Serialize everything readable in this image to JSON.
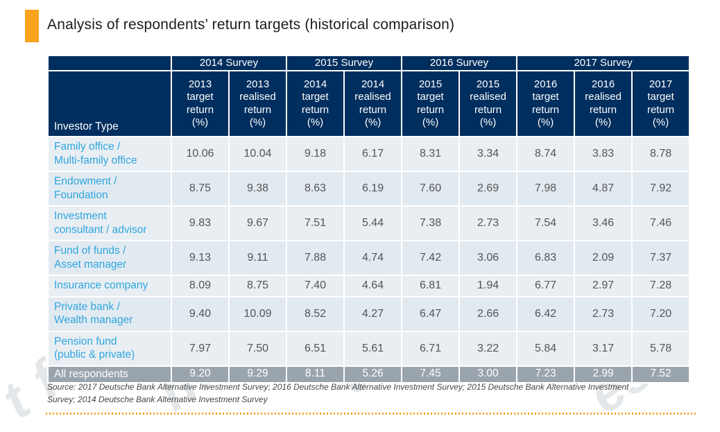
{
  "page": {
    "title": "Analysis of respondents’ return targets (historical comparison)",
    "accent_color": "#F8A21D",
    "header_bg": "#002E5E",
    "label_color": "#2EA6DE",
    "summary_bg": "#9AA4AD"
  },
  "source_note": "Source: 2017 Deutsche Bank Alternative Investment Survey; 2016 Deutsche Bank Alternative Investment Survey; 2015 Deutsche Bank Alternative Investment Survey; 2014 Deutsche Bank Alternative Investment Survey",
  "watermark": {
    "fragments": [
      "t for",
      "nfide",
      "use",
      "ess"
    ]
  },
  "chart_data": {
    "type": "table",
    "title": "Analysis of respondents’ return targets (historical comparison)",
    "row_header": "Investor Type",
    "survey_groups": [
      {
        "label": "2014 Survey",
        "colspan": 2
      },
      {
        "label": "2015 Survey",
        "colspan": 2
      },
      {
        "label": "2016 Survey",
        "colspan": 2
      },
      {
        "label": "2017 Survey",
        "colspan": 3
      }
    ],
    "columns": [
      "2013\ntarget\nreturn\n(%)",
      "2013\nrealised\nreturn\n(%)",
      "2014\ntarget\nreturn\n(%)",
      "2014\nrealised\nreturn\n(%)",
      "2015\ntarget\nreturn\n(%)",
      "2015\nrealised\nreturn\n(%)",
      "2016\ntarget\nreturn\n(%)",
      "2016\nrealised\nreturn\n(%)",
      "2017\ntarget\nreturn\n(%)"
    ],
    "rows": [
      {
        "label": "Family office /\nMulti-family office",
        "values": [
          "10.06",
          "10.04",
          "9.18",
          "6.17",
          "8.31",
          "3.34",
          "8.74",
          "3.83",
          "8.78"
        ]
      },
      {
        "label": "Endowment /\nFoundation",
        "values": [
          "8.75",
          "9.38",
          "8.63",
          "6.19",
          "7.60",
          "2.69",
          "7.98",
          "4.87",
          "7.92"
        ]
      },
      {
        "label": "Investment\nconsultant / advisor",
        "values": [
          "9.83",
          "9.67",
          "7.51",
          "5.44",
          "7.38",
          "2.73",
          "7.54",
          "3.46",
          "7.46"
        ]
      },
      {
        "label": "Fund of funds /\nAsset manager",
        "values": [
          "9.13",
          "9.11",
          "7.88",
          "4.74",
          "7.42",
          "3.06",
          "6.83",
          "2.09",
          "7.37"
        ]
      },
      {
        "label": "Insurance company",
        "values": [
          "8.09",
          "8.75",
          "7.40",
          "4.64",
          "6.81",
          "1.94",
          "6.77",
          "2.97",
          "7.28"
        ]
      },
      {
        "label": "Private bank /\nWealth manager",
        "values": [
          "9.40",
          "10.09",
          "8.52",
          "4.27",
          "6.47",
          "2.66",
          "6.42",
          "2.73",
          "7.20"
        ]
      },
      {
        "label": "Pension fund\n(public & private)",
        "values": [
          "7.97",
          "7.50",
          "6.51",
          "5.61",
          "6.71",
          "3.22",
          "5.84",
          "3.17",
          "5.78"
        ]
      }
    ],
    "summary_row": {
      "label": "All respondents",
      "values": [
        "9.20",
        "9.29",
        "8.11",
        "5.26",
        "7.45",
        "3.00",
        "7.23",
        "2.99",
        "7.52"
      ]
    }
  }
}
